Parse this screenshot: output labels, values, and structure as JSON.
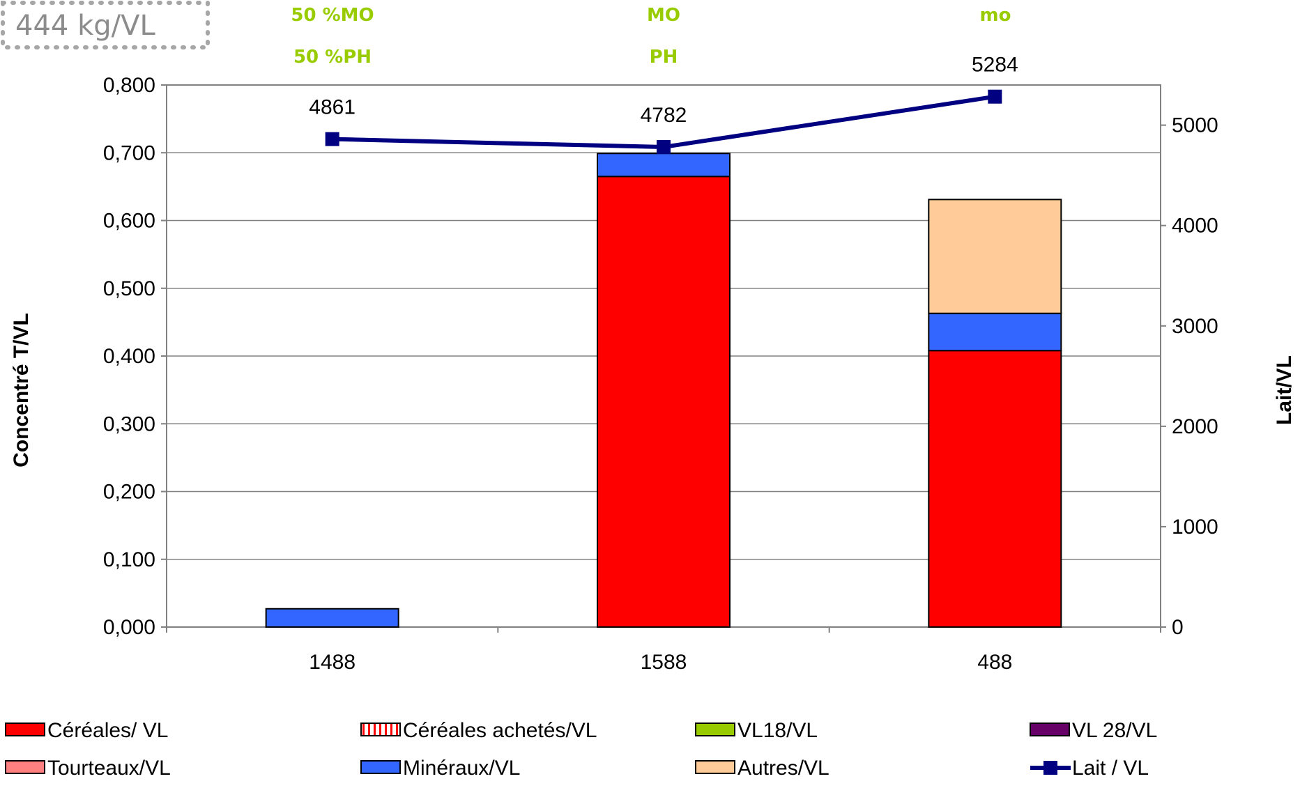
{
  "badge": {
    "text": "444 kg/VL"
  },
  "top_labels": [
    {
      "line1": "50 %MO",
      "line2": "50 %PH"
    },
    {
      "line1": "MO",
      "line2": "PH"
    },
    {
      "line1": "mo",
      "line2": ""
    }
  ],
  "chart_data": {
    "type": "bar",
    "stacked": true,
    "categories": [
      "1488",
      "1588",
      "488"
    ],
    "ylabel": "Concentré T/VL",
    "y2label": "Lait/VL",
    "ylim": [
      0,
      0.8
    ],
    "y2lim": [
      0,
      5400
    ],
    "y_ticks": [
      "0,000",
      "0,100",
      "0,200",
      "0,300",
      "0,400",
      "0,500",
      "0,600",
      "0,700",
      "0,800"
    ],
    "y2_ticks": [
      "0",
      "1000",
      "2000",
      "3000",
      "4000",
      "5000"
    ],
    "grid": true,
    "legend_position": "bottom",
    "series": [
      {
        "name": "Céréales/ VL",
        "color": "#ff0000",
        "values": [
          0,
          0.665,
          0.408
        ]
      },
      {
        "name": "Céréales achetés/VL",
        "color": "#ff0000",
        "pattern": "vertical-stripes",
        "values": [
          0,
          0,
          0
        ]
      },
      {
        "name": "VL18/VL",
        "color": "#99cc00",
        "values": [
          0,
          0,
          0
        ]
      },
      {
        "name": "VL 28/VL",
        "color": "#660066",
        "values": [
          0,
          0,
          0
        ]
      },
      {
        "name": "Tourteaux/VL",
        "color": "#ff8080",
        "values": [
          0,
          0,
          0
        ]
      },
      {
        "name": "Minéraux/VL",
        "color": "#3366ff",
        "values": [
          0.027,
          0.034,
          0.055
        ]
      },
      {
        "name": "Autres/VL",
        "color": "#ffcc99",
        "values": [
          0,
          0,
          0.168
        ]
      }
    ],
    "line_series": {
      "name": "Lait / VL",
      "color": "#000080",
      "axis": "right",
      "values": [
        4861,
        4782,
        5284
      ],
      "labels": [
        "4861",
        "4782",
        "5284"
      ]
    }
  }
}
